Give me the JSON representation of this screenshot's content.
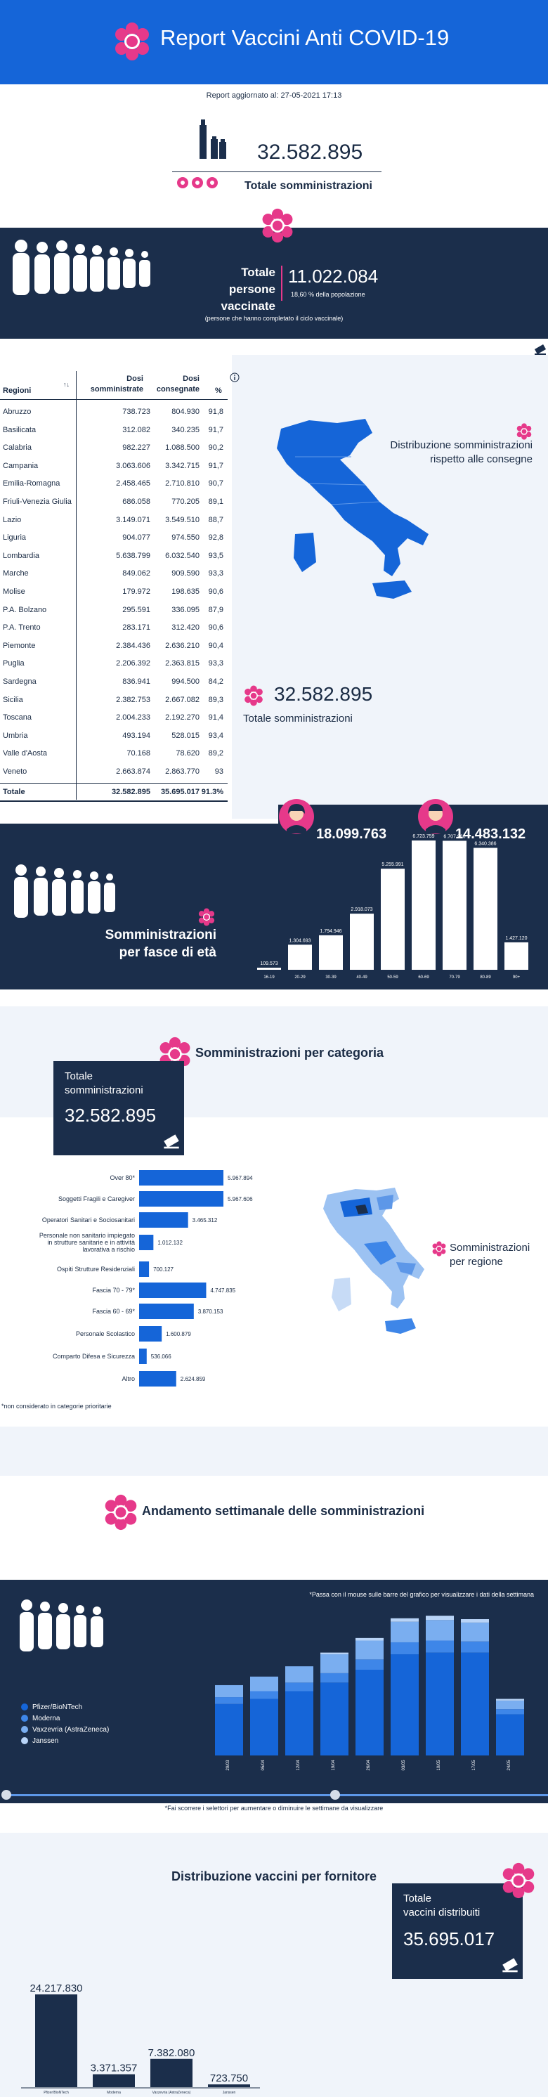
{
  "header": {
    "title": "Report Vaccini Anti COVID-19"
  },
  "report_updated": "Report aggiornato al: 27-05-2021 17:13",
  "total_administrations": {
    "value": "32.582.895",
    "label": "Totale somministrazioni"
  },
  "vaccinated": {
    "title_line1": "Totale",
    "title_line2": "persone vaccinate",
    "value": "11.022.084",
    "percent": "18,60 % della popolazione",
    "note": "(persone che hanno completato il ciclo vaccinale)"
  },
  "regions_table": {
    "headers": {
      "region": "Regioni",
      "sort": "↑↓",
      "admin_1": "Dosi",
      "admin_2": "somministrate",
      "deliv_1": "Dosi",
      "deliv_2": "consegnate",
      "pct": "%"
    },
    "rows": [
      [
        "Abruzzo",
        "738.723",
        "804.930",
        "91,8"
      ],
      [
        "Basilicata",
        "312.082",
        "340.235",
        "91,7"
      ],
      [
        "Calabria",
        "982.227",
        "1.088.500",
        "90,2"
      ],
      [
        "Campania",
        "3.063.606",
        "3.342.715",
        "91,7"
      ],
      [
        "Emilia-Romagna",
        "2.458.465",
        "2.710.810",
        "90,7"
      ],
      [
        "Friuli-Venezia Giulia",
        "686.058",
        "770.205",
        "89,1"
      ],
      [
        "Lazio",
        "3.149.071",
        "3.549.510",
        "88,7"
      ],
      [
        "Liguria",
        "904.077",
        "974.550",
        "92,8"
      ],
      [
        "Lombardia",
        "5.638.799",
        "6.032.540",
        "93,5"
      ],
      [
        "Marche",
        "849.062",
        "909.590",
        "93,3"
      ],
      [
        "Molise",
        "179.972",
        "198.635",
        "90,6"
      ],
      [
        "P.A. Bolzano",
        "295.591",
        "336.095",
        "87,9"
      ],
      [
        "P.A. Trento",
        "283.171",
        "312.420",
        "90,6"
      ],
      [
        "Piemonte",
        "2.384.436",
        "2.636.210",
        "90,4"
      ],
      [
        "Puglia",
        "2.206.392",
        "2.363.815",
        "93,3"
      ],
      [
        "Sardegna",
        "836.941",
        "994.500",
        "84,2"
      ],
      [
        "Sicilia",
        "2.382.753",
        "2.667.082",
        "89,3"
      ],
      [
        "Toscana",
        "2.004.233",
        "2.192.270",
        "91,4"
      ],
      [
        "Umbria",
        "493.194",
        "528.015",
        "93,4"
      ],
      [
        "Valle d'Aosta",
        "70.168",
        "78.620",
        "89,2"
      ],
      [
        "Veneto",
        "2.663.874",
        "2.863.770",
        "93"
      ]
    ],
    "total": [
      "Totale",
      "32.582.895",
      "35.695.017",
      "91.3%"
    ]
  },
  "map_section": {
    "title_line1": "Distribuzione somministrazioni",
    "title_line2": "rispetto alle consegne",
    "total_value": "32.582.895",
    "total_label": "Totale somministrazioni"
  },
  "gender": {
    "female": "18.099.763",
    "male": "14.483.132"
  },
  "age": {
    "title_line1": "Somministrazioni",
    "title_line2": "per fasce di età",
    "chart_data": {
      "type": "bar",
      "categories": [
        "16-19",
        "20-29",
        "30-39",
        "40-49",
        "50-59",
        "60-69",
        "70-79",
        "80-89",
        "90+"
      ],
      "values": [
        109573,
        1304693,
        1794946,
        2918073,
        5255991,
        6723759,
        6707986,
        6340386,
        1427120
      ],
      "value_labels": [
        "109.573",
        "1.304.693",
        "1.794.946",
        "2.918.073",
        "5.255.991",
        "6.723.759",
        "6.707.986",
        "6.340.386",
        "1.427.120"
      ]
    }
  },
  "category": {
    "title": "Somministrazioni per categoria",
    "box_label_1": "Totale",
    "box_label_2": "somministrazioni",
    "box_value": "32.582.895",
    "region_label_1": "Somministrazioni",
    "region_label_2": "per regione",
    "footnote": "*non considerato in categorie prioritarie",
    "chart_data": {
      "type": "bar",
      "orientation": "horizontal",
      "categories": [
        "Over 80*",
        "Soggetti Fragili e Caregiver",
        "Operatori Sanitari e Sociosanitari",
        "Personale non sanitario impiegato in strutture sanitarie e in attività lavorativa a rischio",
        "Ospiti Strutture Residenziali",
        "Fascia 70 - 79*",
        "Fascia 60 - 69*",
        "Personale Scolastico",
        "Comparto Difesa e Sicurezza",
        "Altro"
      ],
      "values": [
        5967894,
        5967606,
        3465312,
        1012132,
        700127,
        4747835,
        3870153,
        1600879,
        536066,
        2624859
      ],
      "value_labels": [
        "5.967.894",
        "5.967.606",
        "3.465.312",
        "1.012.132",
        "700.127",
        "4.747.835",
        "3.870.153",
        "1.600.879",
        "536.066",
        "2.624.859"
      ]
    }
  },
  "weekly": {
    "title": "Andamento settimanale delle somministrazioni",
    "hint": "*Passa con il mouse sulle barre del grafico per visualizzare i dati della settimana",
    "slider_note": "*Fai scorrere i selettori per aumentare o diminuire le settimane da visualizzare",
    "legend": [
      "Pfizer/BioNTech",
      "Moderna",
      "Vaxzevria (AstraZeneca)",
      "Janssen"
    ],
    "colors": [
      "#1565d8",
      "#3e86e8",
      "#7aaef0",
      "#b9d4f7"
    ],
    "chart_data": {
      "type": "bar",
      "stacked": true,
      "categories": [
        "29/03",
        "05/04",
        "12/04",
        "19/04",
        "26/04",
        "03/05",
        "10/05",
        "17/05",
        "24/05"
      ],
      "series": [
        {
          "name": "Pfizer/BioNTech",
          "values": [
            60,
            66,
            75,
            85,
            100,
            118,
            120,
            120,
            48
          ]
        },
        {
          "name": "Moderna",
          "values": [
            8,
            9,
            10,
            11,
            12,
            14,
            14,
            13,
            6
          ]
        },
        {
          "name": "Vaxzevria (AstraZeneca)",
          "values": [
            14,
            17,
            19,
            22,
            22,
            24,
            24,
            22,
            10
          ]
        },
        {
          "name": "Janssen",
          "values": [
            0,
            0,
            0,
            2,
            3,
            4,
            5,
            4,
            2
          ]
        }
      ]
    }
  },
  "supplier": {
    "title": "Distribuzione vaccini per fornitore",
    "box_label_1": "Totale",
    "box_label_2": "vaccini distribuiti",
    "box_value": "35.695.017",
    "chart_data": {
      "type": "bar",
      "categories": [
        "Pfizer/BioNTech",
        "Moderna",
        "Vaxzevria (AstraZeneca)",
        "Janssen"
      ],
      "values": [
        24217830,
        3371357,
        7382080,
        723750
      ],
      "value_labels": [
        "24.217.830",
        "3.371.357",
        "7.382.080",
        "723.750"
      ]
    }
  }
}
